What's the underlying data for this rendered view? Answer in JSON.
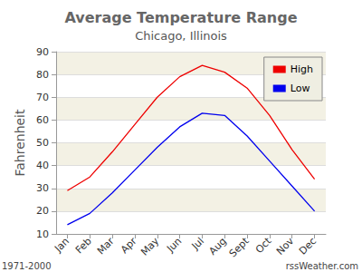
{
  "chart_data": {
    "type": "line",
    "title": "Average Temperature Range",
    "subtitle": "Chicago, Illinois",
    "y_label": "Fahrenheit",
    "categories": [
      "Jan",
      "Feb",
      "Mar",
      "Apr",
      "May",
      "Jun",
      "Jul",
      "Aug",
      "Sept",
      "Oct",
      "Nov",
      "Dec"
    ],
    "series": [
      {
        "name": "High",
        "color": "#ee0000",
        "values": [
          29,
          35,
          46,
          58,
          70,
          79,
          84,
          81,
          74,
          62,
          47,
          34
        ]
      },
      {
        "name": "Low",
        "color": "#0000ee",
        "values": [
          14,
          19,
          28,
          38,
          48,
          57,
          63,
          62,
          53,
          42,
          31,
          20
        ]
      }
    ],
    "ylim": [
      10,
      90
    ],
    "yticks": [
      10,
      20,
      30,
      40,
      50,
      60,
      70,
      80,
      90
    ],
    "grid": true,
    "legend": "top-right",
    "marker": "none",
    "line_style": "solid",
    "annotations": [
      "1971-2000",
      "rssWeather.com"
    ]
  }
}
